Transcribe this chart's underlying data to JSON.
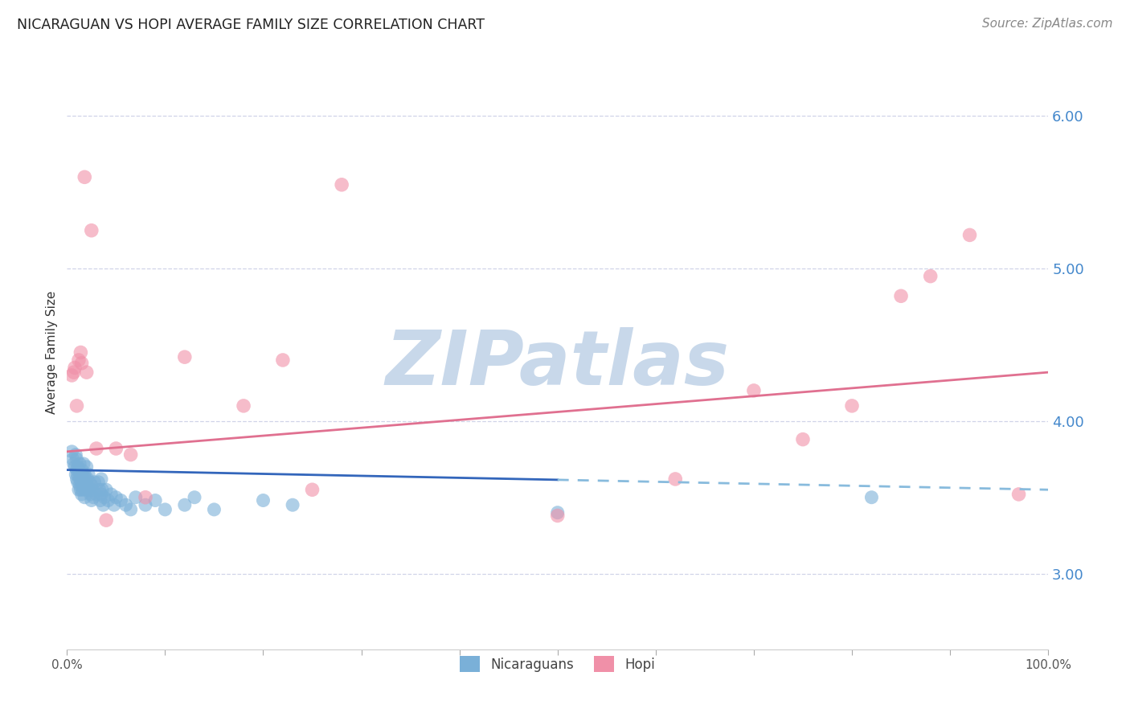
{
  "title": "NICARAGUAN VS HOPI AVERAGE FAMILY SIZE CORRELATION CHART",
  "source": "Source: ZipAtlas.com",
  "ylabel": "Average Family Size",
  "xlim": [
    0,
    1
  ],
  "ylim": [
    2.5,
    6.4
  ],
  "yticks": [
    3.0,
    4.0,
    5.0,
    6.0
  ],
  "xticks": [
    0.0,
    0.1,
    0.2,
    0.3,
    0.4,
    0.5,
    0.6,
    0.7,
    0.8,
    0.9,
    1.0
  ],
  "xtick_labels": [
    "0.0%",
    "",
    "",
    "",
    "",
    "",
    "",
    "",
    "",
    "",
    "100.0%"
  ],
  "legend_color1": "#a8c8e8",
  "legend_color2": "#f4b0c0",
  "nicaraguan_color": "#7ab0d8",
  "hopi_color": "#f090a8",
  "watermark": "ZIPatlas",
  "watermark_color": "#c8d8ea",
  "background_color": "#ffffff",
  "grid_color": "#d0d4e8",
  "blue_line_solid_end": 0.5,
  "pink_line_solid_end": 1.0,
  "nicaraguan_x": [
    0.005,
    0.006,
    0.007,
    0.008,
    0.009,
    0.009,
    0.01,
    0.01,
    0.01,
    0.011,
    0.011,
    0.011,
    0.012,
    0.012,
    0.013,
    0.013,
    0.013,
    0.014,
    0.014,
    0.015,
    0.015,
    0.015,
    0.016,
    0.016,
    0.017,
    0.017,
    0.018,
    0.018,
    0.019,
    0.019,
    0.02,
    0.02,
    0.021,
    0.022,
    0.022,
    0.023,
    0.024,
    0.025,
    0.025,
    0.026,
    0.027,
    0.028,
    0.03,
    0.032,
    0.033,
    0.034,
    0.035,
    0.035,
    0.036,
    0.037,
    0.038,
    0.04,
    0.042,
    0.045,
    0.048,
    0.05,
    0.055,
    0.06,
    0.065,
    0.07,
    0.08,
    0.09,
    0.1,
    0.12,
    0.13,
    0.15,
    0.2,
    0.23,
    0.5,
    0.82
  ],
  "nicaraguan_y": [
    3.8,
    3.75,
    3.72,
    3.7,
    3.78,
    3.65,
    3.75,
    3.62,
    3.68,
    3.65,
    3.7,
    3.6,
    3.68,
    3.55,
    3.72,
    3.62,
    3.58,
    3.65,
    3.55,
    3.68,
    3.6,
    3.52,
    3.65,
    3.55,
    3.72,
    3.58,
    3.65,
    3.5,
    3.62,
    3.55,
    3.7,
    3.58,
    3.62,
    3.55,
    3.65,
    3.6,
    3.52,
    3.58,
    3.48,
    3.55,
    3.5,
    3.6,
    3.52,
    3.6,
    3.55,
    3.48,
    3.62,
    3.52,
    3.55,
    3.45,
    3.5,
    3.55,
    3.48,
    3.52,
    3.45,
    3.5,
    3.48,
    3.45,
    3.42,
    3.5,
    3.45,
    3.48,
    3.42,
    3.45,
    3.5,
    3.42,
    3.48,
    3.45,
    3.4,
    3.5
  ],
  "hopi_x": [
    0.005,
    0.007,
    0.008,
    0.01,
    0.012,
    0.014,
    0.015,
    0.018,
    0.02,
    0.025,
    0.03,
    0.04,
    0.05,
    0.065,
    0.08,
    0.12,
    0.18,
    0.22,
    0.25,
    0.28,
    0.5,
    0.62,
    0.7,
    0.75,
    0.8,
    0.85,
    0.88,
    0.92,
    0.97
  ],
  "hopi_y": [
    4.3,
    4.32,
    4.35,
    4.1,
    4.4,
    4.45,
    4.38,
    5.6,
    4.32,
    5.25,
    3.82,
    3.35,
    3.82,
    3.78,
    3.5,
    4.42,
    4.1,
    4.4,
    3.55,
    5.55,
    3.38,
    3.62,
    4.2,
    3.88,
    4.1,
    4.82,
    4.95,
    5.22,
    3.52
  ],
  "nic_line_x0": 0.0,
  "nic_line_y0": 3.68,
  "nic_line_x1": 1.0,
  "nic_line_y1": 3.55,
  "hopi_line_x0": 0.0,
  "hopi_line_y0": 3.8,
  "hopi_line_x1": 1.0,
  "hopi_line_y1": 4.32
}
